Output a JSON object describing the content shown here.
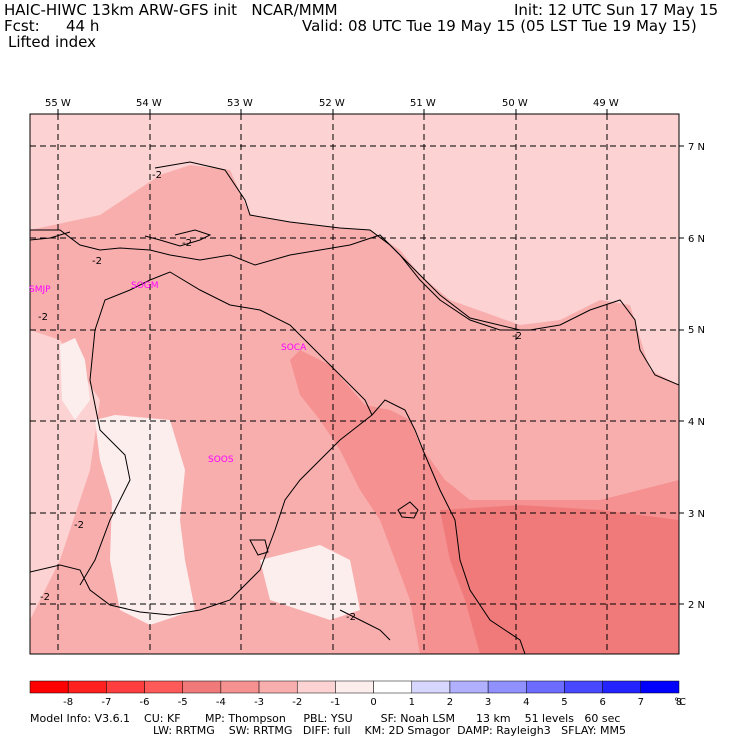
{
  "header": {
    "title_left": "HAIC-HIWC 13km ARW-GFS init   NCAR/MMM",
    "init": "Init: 12 UTC Sun 17 May 15",
    "fcst_label": "Fcst:",
    "fcst_value": "44 h",
    "valid": "Valid: 08 UTC Tue 19 May 15 (05 LST Tue 19 May 15)",
    "field": "Lifted index"
  },
  "map": {
    "lon_labels": [
      "55 W",
      "54 W",
      "53 W",
      "52 W",
      "51 W",
      "50 W",
      "49 W"
    ],
    "lat_labels": [
      "7 N",
      "6 N",
      "5 N",
      "4 N",
      "3 N",
      "2 N"
    ],
    "stations": [
      "SMJP",
      "SOGM",
      "SOCA",
      "SOOS"
    ],
    "contour_labels": [
      "-2",
      "-2",
      "-2",
      "-2",
      "-2",
      "-2",
      "-2",
      "-2"
    ],
    "colors": {
      "li_m1_0": "#fdeeee",
      "li_m2_m1": "#fcd2d2",
      "li_m3_m2": "#f9aeae",
      "li_m4_m3": "#f59191",
      "li_m5_m4": "#f07a7a",
      "station": "#ff00ff"
    }
  },
  "colorbar": {
    "labels": [
      "-8",
      "-7",
      "-6",
      "-5",
      "-4",
      "-3",
      "-2",
      "-1",
      "0",
      "1",
      "2",
      "3",
      "4",
      "5",
      "6",
      "7",
      "8"
    ],
    "unit": "°C",
    "colors": [
      "#ff0000",
      "#ff2020",
      "#ff3f3f",
      "#ff5a5a",
      "#f07a7a",
      "#f59191",
      "#f9aeae",
      "#fcd2d2",
      "#fdeeee",
      "#ffffff",
      "#d6d6ff",
      "#b0b0ff",
      "#9090ff",
      "#6c6cff",
      "#4848ff",
      "#2424ff",
      "#0000ff"
    ]
  },
  "footer": {
    "line1": "Model Info: V3.6.1    CU: KF       MP: Thompson     PBL: YSU        SF: Noah LSM      13 km    51 levels   60 sec",
    "line2": "LW: RRTMG    SW: RRTMG   DIFF: full    KM: 2D Smagor  DAMP: Rayleigh3   SFLAY: MM5"
  }
}
